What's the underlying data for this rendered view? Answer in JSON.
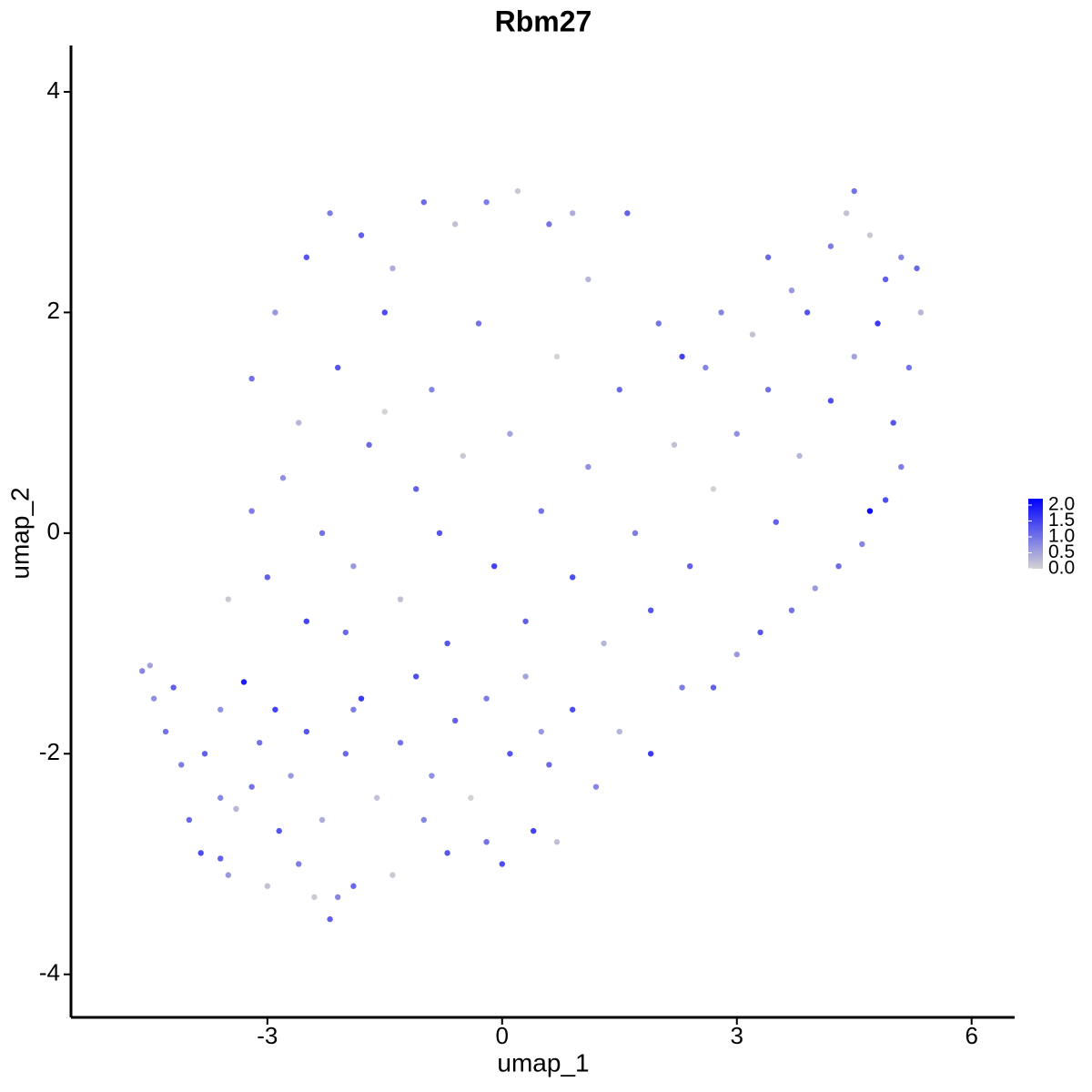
{
  "chart_data": {
    "type": "scatter",
    "title": "Rbm27",
    "x_label": "umap_1",
    "y_label": "umap_2",
    "xlim": [
      -5.51,
      6.55
    ],
    "ylim": [
      -4.39,
      4.42
    ],
    "xticks": [
      -3,
      0,
      3,
      6
    ],
    "yticks": [
      -4,
      -2,
      0,
      2,
      4
    ],
    "low_color": "#d3d3d3",
    "high_color": "#0000ff",
    "colorlim": [
      0,
      2.2
    ],
    "colorticks": [
      {
        "value": 0,
        "label": "0.0"
      },
      {
        "value": 0.5,
        "label": "0.5"
      },
      {
        "value": 1,
        "label": "1.0"
      },
      {
        "value": 1.5,
        "label": "1.5"
      },
      {
        "value": 2,
        "label": "2.0"
      }
    ],
    "x": [
      -4.6,
      -4.5,
      -4.45,
      -4.3,
      -4.1,
      -4.0,
      -3.85,
      -3.6,
      -3.5,
      -3.3,
      -3.2,
      -3.0,
      -2.85,
      -2.6,
      -2.4,
      -2.2,
      -2.1,
      -1.9,
      -1.4,
      -1.0,
      -0.7,
      -0.2,
      0.0,
      0.4,
      0.7,
      -3.8,
      -3.6,
      -3.4,
      -3.1,
      -2.9,
      -2.7,
      -2.5,
      -2.3,
      -2.0,
      -1.8,
      -1.6,
      -1.3,
      -1.1,
      -0.9,
      -0.6,
      -0.4,
      -0.2,
      0.1,
      0.3,
      0.6,
      0.9,
      1.2,
      1.5,
      1.9,
      2.3,
      2.7,
      3.0,
      3.3,
      -3.5,
      -3.2,
      -3.0,
      -2.8,
      -2.6,
      -2.5,
      -2.3,
      -2.1,
      -1.9,
      -1.7,
      -1.5,
      -1.3,
      -1.1,
      -0.9,
      -0.7,
      -0.5,
      -0.3,
      -0.1,
      0.1,
      0.3,
      0.5,
      0.7,
      0.9,
      1.1,
      1.3,
      1.5,
      1.7,
      1.9,
      2.2,
      2.4,
      2.6,
      -3.2,
      -2.9,
      -2.5,
      -2.2,
      -1.8,
      -1.4,
      -1.0,
      -0.6,
      -0.2,
      0.2,
      0.6,
      0.9,
      1.1,
      1.6,
      2.0,
      2.3,
      2.8,
      3.2,
      3.4,
      3.7,
      3.9,
      4.2,
      4.4,
      4.5,
      4.7,
      4.9,
      5.1,
      5.3,
      5.35,
      5.2,
      5.0,
      5.1,
      4.9,
      4.7,
      4.6,
      4.3,
      4.0,
      3.7,
      3.5,
      3.8,
      4.2,
      4.5,
      4.8,
      3.4,
      3.0,
      2.7,
      -1.9,
      -2.0,
      -3.6,
      -4.2,
      -1.5,
      -0.8,
      0.5
    ],
    "y": [
      -1.25,
      -1.2,
      -1.5,
      -1.8,
      -2.1,
      -2.6,
      -2.9,
      -2.95,
      -3.1,
      -1.35,
      -2.3,
      -3.2,
      -2.7,
      -3.0,
      -3.3,
      -3.5,
      -3.3,
      -3.2,
      -3.1,
      -2.6,
      -2.9,
      -2.8,
      -3.0,
      -2.7,
      -2.8,
      -2.0,
      -1.6,
      -2.5,
      -1.9,
      -1.6,
      -2.2,
      -1.8,
      -2.6,
      -2.0,
      -1.5,
      -2.4,
      -1.9,
      -1.3,
      -2.2,
      -1.7,
      -2.4,
      -1.5,
      -2.0,
      -1.3,
      -2.1,
      -1.6,
      -2.3,
      -1.8,
      -2.0,
      -1.4,
      -1.4,
      -1.1,
      -0.9,
      -0.6,
      0.2,
      -0.4,
      0.5,
      1.0,
      -0.8,
      0.0,
      1.5,
      -0.3,
      0.8,
      2.0,
      -0.6,
      0.4,
      1.3,
      -1.0,
      0.7,
      1.9,
      -0.3,
      0.9,
      -0.8,
      0.2,
      1.6,
      -0.4,
      0.6,
      -1.0,
      1.3,
      0.0,
      -0.7,
      0.8,
      -0.3,
      1.5,
      1.4,
      2.0,
      2.5,
      2.9,
      2.7,
      2.4,
      3.0,
      2.8,
      3.0,
      3.1,
      2.8,
      2.9,
      2.3,
      2.9,
      1.9,
      1.6,
      2.0,
      1.8,
      2.5,
      2.2,
      2.0,
      2.6,
      2.9,
      3.1,
      2.7,
      2.3,
      2.5,
      2.4,
      2.0,
      1.5,
      1.0,
      0.6,
      0.3,
      0.2,
      -0.1,
      -0.3,
      -0.5,
      -0.7,
      0.1,
      0.7,
      1.2,
      1.6,
      1.9,
      1.3,
      0.9,
      0.4,
      -1.6,
      -0.9,
      -2.4,
      -1.4,
      1.1,
      0.0,
      -1.8
    ],
    "expression": [
      0.8,
      0.5,
      0.7,
      1.0,
      0.9,
      1.1,
      1.4,
      1.2,
      0.6,
      1.9,
      1.0,
      0.2,
      1.3,
      0.9,
      0.1,
      1.2,
      0.8,
      1.1,
      0.1,
      0.8,
      1.3,
      1.0,
      1.4,
      1.5,
      0.2,
      1.2,
      0.7,
      0.3,
      1.0,
      1.5,
      0.6,
      1.3,
      0.4,
      1.1,
      1.6,
      0.2,
      1.0,
      1.4,
      0.7,
      1.2,
      0.0,
      0.9,
      1.3,
      0.5,
      1.1,
      1.4,
      0.8,
      0.3,
      1.6,
      0.9,
      1.2,
      0.6,
      1.3,
      0.1,
      0.9,
      1.2,
      0.7,
      0.3,
      1.5,
      1.0,
      1.3,
      0.6,
      1.1,
      1.4,
      0.2,
      1.2,
      0.8,
      1.3,
      0.1,
      1.0,
      1.5,
      0.5,
      1.2,
      1.0,
      0.0,
      1.4,
      0.7,
      0.3,
      1.1,
      0.9,
      1.3,
      0.2,
      1.2,
      0.8,
      1.0,
      0.6,
      1.3,
      0.9,
      1.2,
      0.4,
      1.1,
      0.2,
      0.9,
      0.1,
      1.0,
      0.4,
      0.3,
      1.2,
      1.0,
      1.5,
      0.8,
      0.2,
      1.1,
      0.6,
      1.3,
      0.9,
      0.2,
      1.0,
      0.1,
      1.2,
      0.8,
      1.1,
      0.3,
      1.0,
      1.3,
      0.9,
      1.4,
      2.1,
      0.8,
      1.1,
      0.6,
      1.0,
      1.2,
      0.3,
      1.4,
      0.5,
      1.6,
      1.0,
      0.7,
      0.0,
      0.9,
      1.1,
      0.8,
      1.2,
      0.0,
      1.3,
      0.6
    ]
  }
}
